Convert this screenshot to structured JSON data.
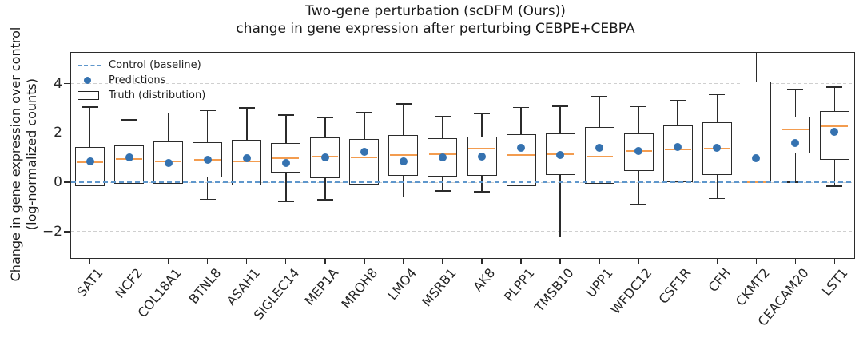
{
  "title": {
    "line1": "Two-gene perturbation (scDFM (Ours))",
    "line2": "change in gene expression after perturbing CEBPE+CEBPA"
  },
  "y_axis": {
    "label_line1": "Change in gene expression over control",
    "label_line2": "(log-normalized counts)",
    "tick_labels": [
      "4",
      "2",
      "0",
      "−2"
    ],
    "tick_values": [
      4,
      2,
      0,
      -2
    ]
  },
  "legend": {
    "items": [
      {
        "label": "Control (baseline)",
        "marker": "dashed-line-icon"
      },
      {
        "label": "Predictions",
        "marker": "dot-icon"
      },
      {
        "label": "Truth (distribution)",
        "marker": "box-outline-icon"
      }
    ]
  },
  "colors": {
    "prediction_dot": "#3572b0",
    "control_baseline": "#5f97cc",
    "median_line": "#f39c4f",
    "box_edge": "#2b2b2b",
    "gridline": "#cfcfcf",
    "text": "#1f1f1f"
  },
  "chart_data": {
    "type": "box",
    "title": "Two-gene perturbation (scDFM (Ours)) — change in gene expression after perturbing CEBPE+CEBPA",
    "ylabel": "Change in gene expression over control (log-normalized counts)",
    "ylim": [
      -3.04,
      5.28
    ],
    "baseline": 0,
    "grid": true,
    "grid_values": [
      4,
      2,
      0,
      -2
    ],
    "legend_position": "upper left",
    "categories": [
      "SAT1",
      "NCF2",
      "COL18A1",
      "BTNL8",
      "ASAH1",
      "SIGLEC14",
      "MEP1A",
      "MROH8",
      "LMO4",
      "MSRB1",
      "AK8",
      "PLPP1",
      "TMSB10",
      "UPP1",
      "WFDC12",
      "CSF1R",
      "CFH",
      "CKMT2",
      "CEACAM20",
      "LST1"
    ],
    "truth_boxes": [
      {
        "gene": "SAT1",
        "whisker_low": -0.17,
        "q1": -0.17,
        "median": 0.8,
        "q3": 1.42,
        "whisker_high": 3.05,
        "whisker_high_clipped": false
      },
      {
        "gene": "NCF2",
        "whisker_low": -0.05,
        "q1": -0.05,
        "median": 0.94,
        "q3": 1.49,
        "whisker_high": 2.52,
        "whisker_high_clipped": false
      },
      {
        "gene": "COL18A1",
        "whisker_low": -0.05,
        "q1": -0.05,
        "median": 0.83,
        "q3": 1.64,
        "whisker_high": 2.8,
        "whisker_high_clipped": false
      },
      {
        "gene": "BTNL8",
        "whisker_low": -0.69,
        "q1": 0.2,
        "median": 0.91,
        "q3": 1.61,
        "whisker_high": 2.9,
        "whisker_high_clipped": false
      },
      {
        "gene": "ASAH1",
        "whisker_low": -0.12,
        "q1": -0.12,
        "median": 0.83,
        "q3": 1.72,
        "whisker_high": 3.01,
        "whisker_high_clipped": false
      },
      {
        "gene": "SIGLEC14",
        "whisker_low": -0.77,
        "q1": 0.4,
        "median": 0.96,
        "q3": 1.58,
        "whisker_high": 2.72,
        "whisker_high_clipped": false
      },
      {
        "gene": "MEP1A",
        "whisker_low": -0.71,
        "q1": 0.17,
        "median": 1.05,
        "q3": 1.81,
        "whisker_high": 2.61,
        "whisker_high_clipped": false
      },
      {
        "gene": "MROH8",
        "whisker_low": -0.11,
        "q1": -0.11,
        "median": 1.01,
        "q3": 1.74,
        "whisker_high": 2.82,
        "whisker_high_clipped": false
      },
      {
        "gene": "LMO4",
        "whisker_low": -0.6,
        "q1": 0.26,
        "median": 1.09,
        "q3": 1.91,
        "whisker_high": 3.17,
        "whisker_high_clipped": false
      },
      {
        "gene": "MSRB1",
        "whisker_low": -0.36,
        "q1": 0.23,
        "median": 1.14,
        "q3": 1.77,
        "whisker_high": 2.65,
        "whisker_high_clipped": false
      },
      {
        "gene": "AK8",
        "whisker_low": -0.39,
        "q1": 0.26,
        "median": 1.37,
        "q3": 1.84,
        "whisker_high": 2.79,
        "whisker_high_clipped": false
      },
      {
        "gene": "PLPP1",
        "whisker_low": -0.17,
        "q1": -0.17,
        "median": 1.09,
        "q3": 1.96,
        "whisker_high": 3.03,
        "whisker_high_clipped": false
      },
      {
        "gene": "TMSB10",
        "whisker_low": -2.22,
        "q1": 0.28,
        "median": 1.15,
        "q3": 1.98,
        "whisker_high": 3.08,
        "whisker_high_clipped": false
      },
      {
        "gene": "UPP1",
        "whisker_low": -0.07,
        "q1": -0.07,
        "median": 1.03,
        "q3": 2.23,
        "whisker_high": 3.46,
        "whisker_high_clipped": false
      },
      {
        "gene": "WFDC12",
        "whisker_low": -0.91,
        "q1": 0.45,
        "median": 1.28,
        "q3": 1.98,
        "whisker_high": 3.06,
        "whisker_high_clipped": false
      },
      {
        "gene": "CSF1R",
        "whisker_low": -0.01,
        "q1": -0.01,
        "median": 1.34,
        "q3": 2.31,
        "whisker_high": 3.3,
        "whisker_high_clipped": false
      },
      {
        "gene": "CFH",
        "whisker_low": -0.66,
        "q1": 0.31,
        "median": 1.36,
        "q3": 2.44,
        "whisker_high": 3.55,
        "whisker_high_clipped": false
      },
      {
        "gene": "CKMT2",
        "whisker_low": -0.02,
        "q1": -0.02,
        "median": 0.01,
        "q3": 4.09,
        "whisker_high": 5.28,
        "whisker_high_clipped": true
      },
      {
        "gene": "CEACAM20",
        "whisker_low": 0.0,
        "q1": 1.17,
        "median": 2.13,
        "q3": 2.67,
        "whisker_high": 3.76,
        "whisker_high_clipped": false
      },
      {
        "gene": "LST1",
        "whisker_low": -0.15,
        "q1": 0.9,
        "median": 2.27,
        "q3": 2.87,
        "whisker_high": 3.85,
        "whisker_high_clipped": false
      }
    ],
    "predictions": [
      0.84,
      1.02,
      0.79,
      0.92,
      0.97,
      0.78,
      1.0,
      1.24,
      0.83,
      1.0,
      1.04,
      1.39,
      1.12,
      1.4,
      1.28,
      1.43,
      1.39,
      0.96,
      1.58,
      2.04
    ]
  }
}
